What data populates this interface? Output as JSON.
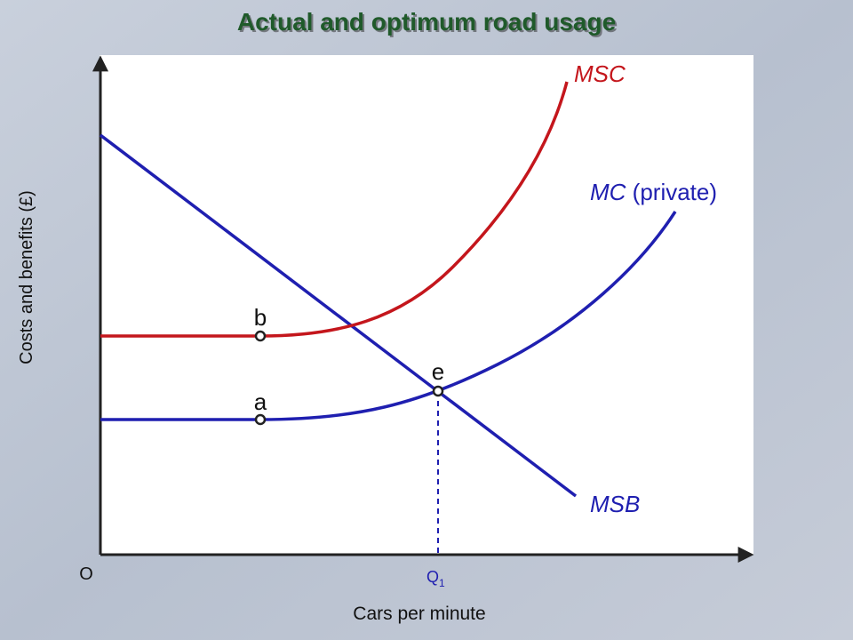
{
  "title": "Actual and optimum road usage",
  "axes": {
    "y_label": "Costs and benefits (£)",
    "x_label": "Cars per minute",
    "origin": "O"
  },
  "curves": [
    {
      "label": "MSC"
    },
    {
      "label": "MC",
      "note": "(private)"
    },
    {
      "label": "MSB"
    }
  ],
  "points": [
    {
      "label": "b"
    },
    {
      "label": "a"
    },
    {
      "label": "e"
    }
  ],
  "quantity": {
    "symbol": "Q",
    "subscript": "1"
  }
}
